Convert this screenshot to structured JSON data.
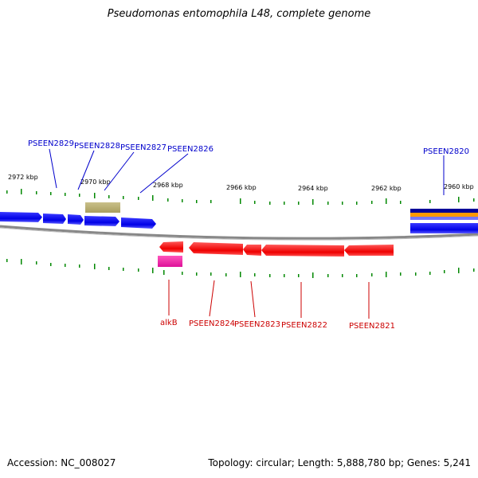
{
  "title": "Pseudomonas entomophila L48, complete genome",
  "footer": {
    "accession": "Accession: NC_008027",
    "summary": "Topology: circular; Length: 5,888,780 bp; Genes: 5,241"
  },
  "colors": {
    "forward_label": "#0000cc",
    "reverse_label": "#cc0000",
    "tick": "#008800",
    "backbone": "#888888"
  },
  "scale_labels": [
    "2972 kbp",
    "2970 kbp",
    "2968 kbp",
    "2966 kbp",
    "2964 kbp",
    "2962 kbp",
    "2960 kbp"
  ],
  "forward_gene_labels": [
    "PSEEN2829",
    "PSEEN2828",
    "PSEEN2827",
    "PSEEN2826",
    "PSEEN2820"
  ],
  "reverse_gene_labels": [
    "alkB",
    "PSEEN2824",
    "PSEEN2823",
    "PSEEN2822",
    "PSEEN2821"
  ]
}
